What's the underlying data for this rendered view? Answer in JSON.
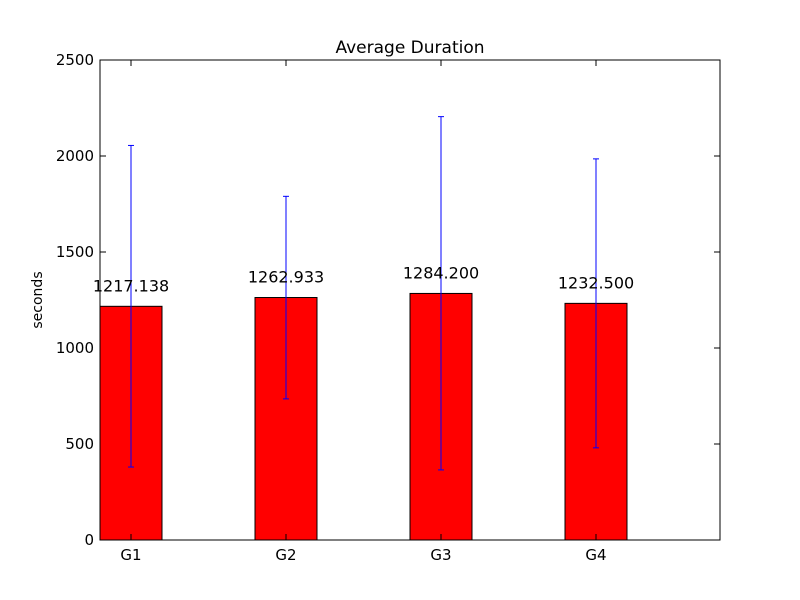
{
  "chart_data": {
    "type": "bar",
    "title": "Average Duration",
    "xlabel": "",
    "ylabel": "seconds",
    "categories": [
      "G1",
      "G2",
      "G3",
      "G4"
    ],
    "values": [
      1217.138,
      1262.933,
      1284.2,
      1232.5
    ],
    "value_labels": [
      "1217.138",
      "1262.933",
      "1284.200",
      "1232.500"
    ],
    "error_low": [
      380,
      735,
      365,
      480
    ],
    "error_high": [
      2055,
      1790,
      2205,
      1985
    ],
    "ylim": [
      0,
      2500
    ],
    "yticks": [
      0,
      500,
      1000,
      1500,
      2000,
      2500
    ],
    "ytick_labels": [
      "0",
      "500",
      "1000",
      "1500",
      "2000",
      "2500"
    ],
    "grid": false,
    "bar_color": "#ff0000",
    "error_color": "#0000ff"
  }
}
